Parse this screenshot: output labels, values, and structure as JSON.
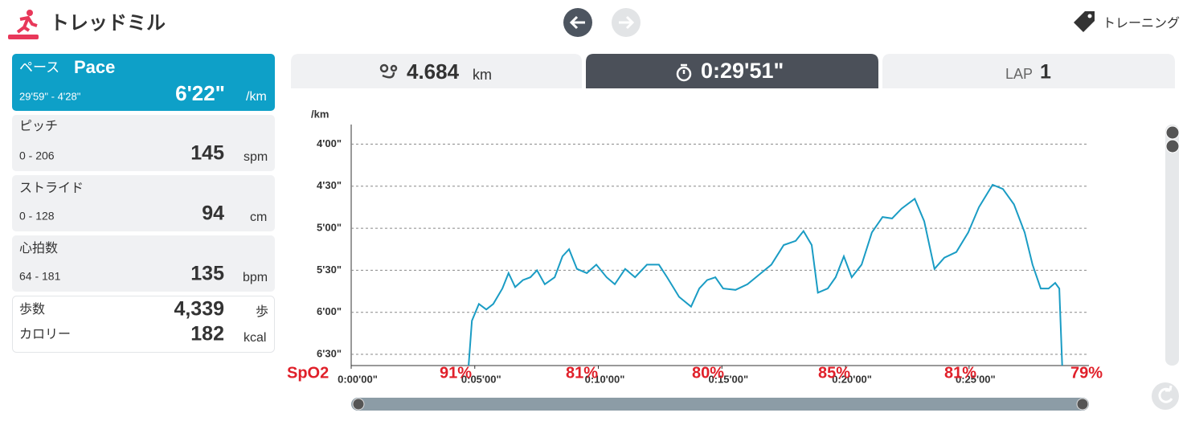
{
  "header": {
    "title": "トレッドミル",
    "training": "トレーニング"
  },
  "metrics": {
    "pace": {
      "label": "ペース",
      "label_en": "Pace",
      "range": "29'59\" - 4'28\"",
      "value": "6'22\"",
      "unit": "/km"
    },
    "pitch": {
      "label": "ピッチ",
      "range": "0 - 206",
      "value": 145,
      "unit": "spm"
    },
    "stride": {
      "label": "ストライド",
      "range": "0 - 128",
      "value": 94,
      "unit": "cm"
    },
    "heart_rate": {
      "label": "心拍数",
      "range": "64 - 181",
      "value": 135,
      "unit": "bpm"
    },
    "steps": {
      "label": "歩数",
      "value": "4,339",
      "unit": "歩"
    },
    "calories": {
      "label": "カロリー",
      "value": 182,
      "unit": "kcal"
    }
  },
  "tabs": {
    "distance": {
      "value": "4.684",
      "unit": "km"
    },
    "time": {
      "value": "0:29'51\""
    },
    "lap": {
      "label": "LAP",
      "value": 1
    }
  },
  "chart_data": {
    "type": "line",
    "y_label": "/km",
    "color": "#1a9cc4",
    "y_inverted": true,
    "grid": true,
    "xlim": [
      0,
      1791
    ],
    "ylim": [
      226,
      398
    ],
    "xticks": [
      {
        "value": 0,
        "label": "0:00'00\""
      },
      {
        "value": 300,
        "label": "0:05'00\""
      },
      {
        "value": 600,
        "label": "0:10'00\""
      },
      {
        "value": 900,
        "label": "0:15'00\""
      },
      {
        "value": 1200,
        "label": "0:20'00\""
      },
      {
        "value": 1500,
        "label": "0:25'00\""
      }
    ],
    "yticks": [
      {
        "value": 240,
        "label": "4'00\""
      },
      {
        "value": 270,
        "label": "4'30\""
      },
      {
        "value": 300,
        "label": "5'00\""
      },
      {
        "value": 330,
        "label": "5'30\""
      },
      {
        "value": 360,
        "label": "6'00\""
      },
      {
        "value": 390,
        "label": "6'30\""
      }
    ],
    "x": [
      285,
      293,
      310,
      328,
      345,
      367,
      382,
      398,
      417,
      435,
      451,
      470,
      494,
      513,
      529,
      548,
      572,
      595,
      620,
      640,
      665,
      689,
      718,
      747,
      767,
      796,
      825,
      845,
      864,
      884,
      903,
      933,
      962,
      991,
      1020,
      1050,
      1079,
      1098,
      1118,
      1133,
      1157,
      1176,
      1196,
      1215,
      1239,
      1264,
      1290,
      1313,
      1336,
      1368,
      1391,
      1416,
      1440,
      1469,
      1498,
      1524,
      1557,
      1582,
      1609,
      1635,
      1654,
      1674,
      1693,
      1709,
      1719,
      1726
    ],
    "values": [
      398,
      366,
      354,
      358,
      354,
      343,
      332,
      342,
      337,
      335,
      330,
      340,
      335,
      320,
      315,
      329,
      332,
      326,
      335,
      340,
      329,
      335,
      326,
      326,
      335,
      349,
      356,
      343,
      337,
      335,
      343,
      344,
      340,
      333,
      326,
      312,
      309,
      302,
      312,
      346,
      343,
      335,
      320,
      335,
      326,
      303,
      292,
      293,
      286,
      279,
      295,
      329,
      321,
      317,
      303,
      285,
      269,
      272,
      283,
      303,
      326,
      343,
      343,
      339,
      343,
      398
    ],
    "spo2": {
      "label": "SpO2",
      "values": [
        91,
        81,
        80,
        85,
        81,
        79
      ],
      "value_labels": [
        "91%",
        "81%",
        "80%",
        "85%",
        "81%",
        "79%"
      ],
      "color": "#e0202a"
    }
  }
}
